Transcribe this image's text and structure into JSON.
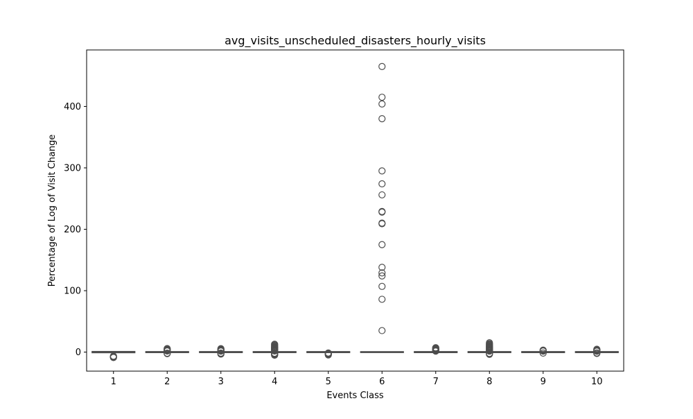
{
  "chart_data": {
    "type": "box",
    "title": "avg_visits_unscheduled_disasters_hourly_visits",
    "xlabel": "Events Class",
    "ylabel": "Percentage of Log of Visit Change",
    "ylim": [
      -31,
      492
    ],
    "yticks": [
      0,
      100,
      200,
      300,
      400
    ],
    "categories": [
      "1",
      "2",
      "3",
      "4",
      "5",
      "6",
      "7",
      "8",
      "9",
      "10"
    ],
    "grid": false,
    "legend": "none",
    "box_color": "#d9d9d9",
    "edge_color": "#4d4d4d",
    "boxes": [
      {
        "category": "1",
        "q1": -0.6,
        "median": 0,
        "q3": 0.6,
        "whisker_low": -1,
        "whisker_high": 1,
        "outliers": [
          -6.5,
          -7.2,
          -7.8,
          -8.3,
          -8.8
        ]
      },
      {
        "category": "2",
        "q1": -0.4,
        "median": 0,
        "q3": 0.4,
        "whisker_low": -1,
        "whisker_high": 1,
        "outliers": [
          -2.5,
          -1.8,
          1.8,
          2.6,
          3.4,
          4.2,
          5.0,
          5.8
        ]
      },
      {
        "category": "3",
        "q1": -0.4,
        "median": 0,
        "q3": 0.4,
        "whisker_low": -1,
        "whisker_high": 1,
        "outliers": [
          -3.2,
          -2.4,
          -1.6,
          1.6,
          2.4,
          3.2,
          4.0,
          4.8,
          5.6
        ]
      },
      {
        "category": "4",
        "q1": -0.4,
        "median": 0,
        "q3": 0.4,
        "whisker_low": -1,
        "whisker_high": 1,
        "outliers": [
          -5.0,
          -4.2,
          -3.4,
          -2.6,
          -1.8,
          1.8,
          2.6,
          3.4,
          4.2,
          5.0,
          5.8,
          6.6,
          7.4,
          8.2,
          9.0,
          10.2,
          11.5,
          12.8
        ]
      },
      {
        "category": "5",
        "q1": -0.4,
        "median": 0,
        "q3": 0.4,
        "whisker_low": -1,
        "whisker_high": 1,
        "outliers": [
          -4.6,
          -3.8,
          -3.0,
          -2.2,
          -1.4
        ]
      },
      {
        "category": "6",
        "q1": -0.3,
        "median": 0,
        "q3": 0.3,
        "whisker_low": -0.8,
        "whisker_high": 0.8,
        "outliers": [
          35,
          86,
          107,
          124,
          129,
          138,
          175,
          209,
          210,
          228,
          229,
          256,
          274,
          295,
          380,
          404,
          415,
          465
        ]
      },
      {
        "category": "7",
        "q1": -0.4,
        "median": 0,
        "q3": 0.4,
        "whisker_low": -1,
        "whisker_high": 1,
        "outliers": [
          1.6,
          2.4,
          3.2,
          4.0,
          4.8,
          5.6,
          6.4,
          7.2
        ]
      },
      {
        "category": "8",
        "q1": -0.4,
        "median": 0,
        "q3": 0.4,
        "whisker_low": -1,
        "whisker_high": 1,
        "outliers": [
          -3.6,
          -2.8,
          -2.0,
          1.6,
          2.4,
          3.2,
          4.0,
          4.8,
          5.6,
          6.4,
          7.2,
          8.0,
          8.8,
          9.8,
          11.0,
          12.2,
          13.5,
          15.2
        ]
      },
      {
        "category": "9",
        "q1": -0.4,
        "median": 0,
        "q3": 0.4,
        "whisker_low": -1,
        "whisker_high": 1,
        "outliers": [
          -1.6,
          1.6,
          2.4,
          3.2
        ]
      },
      {
        "category": "10",
        "q1": -0.4,
        "median": 0,
        "q3": 0.4,
        "whisker_low": -1,
        "whisker_high": 1,
        "outliers": [
          -2.2,
          -1.4,
          1.4,
          2.2,
          3.0,
          3.8,
          4.6
        ]
      }
    ]
  }
}
